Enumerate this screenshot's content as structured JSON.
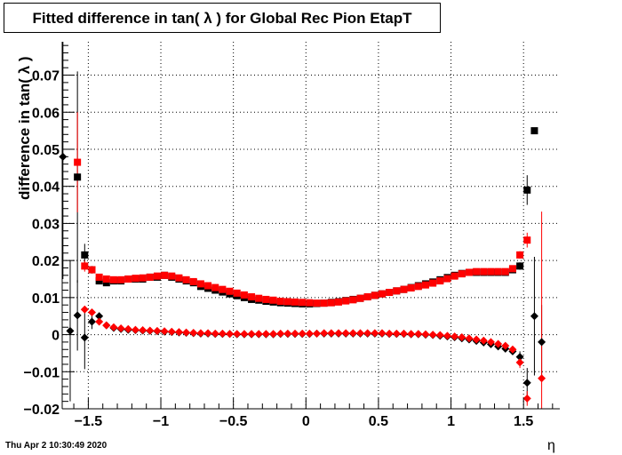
{
  "chart_data": {
    "type": "scatter",
    "title": "Fitted difference in tan( λ ) for Global Rec Pion EtapT",
    "xlabel": "η",
    "ylabel": "difference in tan( λ )",
    "xlim": [
      -1.68,
      1.75
    ],
    "ylim": [
      -0.02,
      0.079
    ],
    "xticks": [
      -1.5,
      -1,
      -0.5,
      0,
      0.5,
      1,
      1.5
    ],
    "xtick_labels": [
      "−1.5",
      "−1",
      "−0.5",
      "0",
      "0.5",
      "1",
      "1.5"
    ],
    "yticks": [
      -0.02,
      -0.01,
      0,
      0.01,
      0.02,
      0.03,
      0.04,
      0.05,
      0.06,
      0.07
    ],
    "ytick_labels": [
      "−0.02",
      "−0.01",
      "0",
      "0.01",
      "0.02",
      "0.03",
      "0.04",
      "0.05",
      "0.06",
      "0.07"
    ],
    "grid": true,
    "series": [
      {
        "marker": "square",
        "color": "#000000",
        "x": [
          -1.575,
          -1.525,
          -1.475,
          -1.425,
          -1.375,
          -1.325,
          -1.275,
          -1.225,
          -1.175,
          -1.125,
          -1.075,
          -1.025,
          -0.975,
          -0.925,
          -0.875,
          -0.825,
          -0.775,
          -0.725,
          -0.675,
          -0.625,
          -0.575,
          -0.525,
          -0.475,
          -0.425,
          -0.375,
          -0.325,
          -0.275,
          -0.225,
          -0.175,
          -0.125,
          -0.075,
          -0.025,
          0.025,
          0.075,
          0.125,
          0.175,
          0.225,
          0.275,
          0.325,
          0.375,
          0.425,
          0.475,
          0.525,
          0.575,
          0.625,
          0.675,
          0.725,
          0.775,
          0.825,
          0.875,
          0.925,
          0.975,
          1.025,
          1.075,
          1.125,
          1.175,
          1.225,
          1.275,
          1.325,
          1.375,
          1.425,
          1.475,
          1.525,
          1.575
        ],
        "y": [
          0.0425,
          0.0215,
          0.0175,
          0.0145,
          0.014,
          0.0145,
          0.0145,
          0.015,
          0.015,
          0.015,
          0.0155,
          0.0155,
          0.016,
          0.0155,
          0.015,
          0.0145,
          0.014,
          0.013,
          0.0125,
          0.012,
          0.0115,
          0.011,
          0.0105,
          0.01,
          0.0095,
          0.0093,
          0.009,
          0.0088,
          0.0086,
          0.0085,
          0.0084,
          0.0083,
          0.0083,
          0.0084,
          0.0085,
          0.0087,
          0.0089,
          0.0092,
          0.0095,
          0.0098,
          0.0102,
          0.0106,
          0.011,
          0.0114,
          0.0118,
          0.0122,
          0.0127,
          0.0132,
          0.0137,
          0.0142,
          0.0148,
          0.0154,
          0.016,
          0.0165,
          0.0168,
          0.0168,
          0.0168,
          0.0168,
          0.0168,
          0.0168,
          0.0175,
          0.0185,
          0.039,
          0.055
        ],
        "err": [
          0.0285,
          0.003,
          0.001,
          0.0008,
          0.0005,
          0.0005,
          0.0004,
          0.0004,
          0.0004,
          0.0004,
          0.0004,
          0.0004,
          0.0004,
          0.0004,
          0.0004,
          0.0003,
          0.0003,
          0.0003,
          0.0003,
          0.0003,
          0.0003,
          0.0003,
          0.0003,
          0.0003,
          0.0003,
          0.0003,
          0.0003,
          0.0003,
          0.0003,
          0.0003,
          0.0003,
          0.0003,
          0.0003,
          0.0003,
          0.0003,
          0.0003,
          0.0003,
          0.0003,
          0.0003,
          0.0003,
          0.0003,
          0.0003,
          0.0003,
          0.0003,
          0.0003,
          0.0003,
          0.0003,
          0.0003,
          0.0003,
          0.0003,
          0.0003,
          0.0003,
          0.0003,
          0.0003,
          0.0003,
          0.0003,
          0.0004,
          0.0004,
          0.0004,
          0.0005,
          0.0006,
          0.001,
          0.004,
          0.0
        ]
      },
      {
        "marker": "square",
        "color": "#ff0000",
        "x": [
          -1.575,
          -1.525,
          -1.475,
          -1.425,
          -1.375,
          -1.325,
          -1.275,
          -1.225,
          -1.175,
          -1.125,
          -1.075,
          -1.025,
          -0.975,
          -0.925,
          -0.875,
          -0.825,
          -0.775,
          -0.725,
          -0.675,
          -0.625,
          -0.575,
          -0.525,
          -0.475,
          -0.425,
          -0.375,
          -0.325,
          -0.275,
          -0.225,
          -0.175,
          -0.125,
          -0.075,
          -0.025,
          0.025,
          0.075,
          0.125,
          0.175,
          0.225,
          0.275,
          0.325,
          0.375,
          0.425,
          0.475,
          0.525,
          0.575,
          0.625,
          0.675,
          0.725,
          0.775,
          0.825,
          0.875,
          0.925,
          0.975,
          1.025,
          1.075,
          1.125,
          1.175,
          1.225,
          1.275,
          1.325,
          1.375,
          1.425,
          1.475,
          1.525
        ],
        "y": [
          0.0465,
          0.0185,
          0.0175,
          0.0155,
          0.015,
          0.0148,
          0.0148,
          0.015,
          0.0152,
          0.0153,
          0.0155,
          0.0158,
          0.016,
          0.0158,
          0.0153,
          0.0148,
          0.0143,
          0.0137,
          0.0132,
          0.0127,
          0.0122,
          0.0117,
          0.0112,
          0.0107,
          0.0102,
          0.0098,
          0.0095,
          0.0093,
          0.009,
          0.0089,
          0.0088,
          0.0087,
          0.0086,
          0.0085,
          0.0085,
          0.0086,
          0.0088,
          0.0091,
          0.0094,
          0.0098,
          0.0102,
          0.0106,
          0.011,
          0.0114,
          0.0118,
          0.0122,
          0.0126,
          0.013,
          0.0134,
          0.0139,
          0.0145,
          0.0151,
          0.0158,
          0.0164,
          0.0168,
          0.017,
          0.017,
          0.017,
          0.017,
          0.017,
          0.0178,
          0.0215,
          0.0255
        ],
        "err": [
          0.0135,
          0.0015,
          0.001,
          0.0008,
          0.0005,
          0.0005,
          0.0004,
          0.0004,
          0.0004,
          0.0004,
          0.0004,
          0.0004,
          0.0004,
          0.0004,
          0.0004,
          0.0003,
          0.0003,
          0.0003,
          0.0003,
          0.0003,
          0.0003,
          0.0003,
          0.0003,
          0.0003,
          0.0003,
          0.0003,
          0.0003,
          0.0003,
          0.0003,
          0.0003,
          0.0003,
          0.0003,
          0.0003,
          0.0003,
          0.0003,
          0.0003,
          0.0003,
          0.0003,
          0.0003,
          0.0003,
          0.0003,
          0.0003,
          0.0003,
          0.0003,
          0.0003,
          0.0003,
          0.0003,
          0.0003,
          0.0003,
          0.0003,
          0.0003,
          0.0003,
          0.0003,
          0.0003,
          0.0003,
          0.0003,
          0.0004,
          0.0004,
          0.0004,
          0.0005,
          0.0006,
          0.001,
          0.002
        ]
      },
      {
        "marker": "diamond",
        "color": "#000000",
        "x": [
          -1.675,
          -1.625,
          -1.575,
          -1.525,
          -1.475,
          -1.425,
          -1.375,
          -1.325,
          -1.275,
          -1.225,
          -1.175,
          -1.125,
          -1.075,
          -1.025,
          -0.975,
          -0.925,
          -0.875,
          -0.825,
          -0.775,
          -0.725,
          -0.675,
          -0.625,
          -0.575,
          -0.525,
          -0.475,
          -0.425,
          -0.375,
          -0.325,
          -0.275,
          -0.225,
          -0.175,
          -0.125,
          -0.075,
          -0.025,
          0.025,
          0.075,
          0.125,
          0.175,
          0.225,
          0.275,
          0.325,
          0.375,
          0.425,
          0.475,
          0.525,
          0.575,
          0.625,
          0.675,
          0.725,
          0.775,
          0.825,
          0.875,
          0.925,
          0.975,
          1.025,
          1.075,
          1.125,
          1.175,
          1.225,
          1.275,
          1.325,
          1.375,
          1.425,
          1.475,
          1.525,
          1.575,
          1.625
        ],
        "y": [
          0.048,
          0.001,
          0.0052,
          -0.0008,
          0.0035,
          0.005,
          0.0025,
          0.0018,
          0.0015,
          0.0013,
          0.0012,
          0.0011,
          0.001,
          0.0009,
          0.0008,
          0.0007,
          0.0006,
          0.0005,
          0.0004,
          0.0003,
          0.0003,
          0.0002,
          0.0002,
          0.0002,
          0.0001,
          0.0001,
          0.0001,
          0.0001,
          0.0001,
          0.0001,
          0.0002,
          0.0002,
          0.0002,
          0.0002,
          0.0002,
          0.0003,
          0.0003,
          0.0003,
          0.0003,
          0.0003,
          0.0003,
          0.0003,
          0.0003,
          0.0003,
          0.0003,
          0.0002,
          0.0002,
          0.0002,
          0.0001,
          0.0001,
          0.0,
          -0.0001,
          -0.0003,
          -0.0005,
          -0.0007,
          -0.001,
          -0.0013,
          -0.0017,
          -0.0021,
          -0.0026,
          -0.0032,
          -0.0038,
          -0.0045,
          -0.006,
          -0.013,
          0.005,
          -0.002
        ],
        "err": [
          0.033,
          0.019,
          0.0095,
          0.0085,
          0.002,
          0.001,
          0.0005,
          0.0004,
          0.0003,
          0.0003,
          0.0003,
          0.0003,
          0.0003,
          0.0003,
          0.0003,
          0.0003,
          0.0003,
          0.0003,
          0.0003,
          0.0003,
          0.0003,
          0.0003,
          0.0003,
          0.0003,
          0.0003,
          0.0003,
          0.0003,
          0.0003,
          0.0003,
          0.0003,
          0.0003,
          0.0003,
          0.0003,
          0.0003,
          0.0003,
          0.0003,
          0.0003,
          0.0003,
          0.0003,
          0.0003,
          0.0003,
          0.0003,
          0.0003,
          0.0003,
          0.0003,
          0.0003,
          0.0003,
          0.0003,
          0.0003,
          0.0003,
          0.0003,
          0.0003,
          0.0003,
          0.0003,
          0.0003,
          0.0003,
          0.0003,
          0.0003,
          0.0003,
          0.0003,
          0.0004,
          0.0005,
          0.0007,
          0.0015,
          0.004,
          0.016,
          0.01
        ]
      },
      {
        "marker": "diamond",
        "color": "#ff0000",
        "x": [
          -1.525,
          -1.475,
          -1.425,
          -1.375,
          -1.325,
          -1.275,
          -1.225,
          -1.175,
          -1.125,
          -1.075,
          -1.025,
          -0.975,
          -0.925,
          -0.875,
          -0.825,
          -0.775,
          -0.725,
          -0.675,
          -0.625,
          -0.575,
          -0.525,
          -0.475,
          -0.425,
          -0.375,
          -0.325,
          -0.275,
          -0.225,
          -0.175,
          -0.125,
          -0.075,
          -0.025,
          0.025,
          0.075,
          0.125,
          0.175,
          0.225,
          0.275,
          0.325,
          0.375,
          0.425,
          0.475,
          0.525,
          0.575,
          0.625,
          0.675,
          0.725,
          0.775,
          0.825,
          0.875,
          0.925,
          0.975,
          1.025,
          1.075,
          1.125,
          1.175,
          1.225,
          1.275,
          1.325,
          1.375,
          1.425,
          1.475,
          1.525,
          1.625
        ],
        "y": [
          0.0068,
          0.006,
          0.0035,
          0.0025,
          0.002,
          0.0017,
          0.0015,
          0.0013,
          0.0012,
          0.0011,
          0.001,
          0.0009,
          0.0008,
          0.0007,
          0.0006,
          0.0005,
          0.0004,
          0.0004,
          0.0003,
          0.0003,
          0.0002,
          0.0002,
          0.0002,
          0.0002,
          0.0002,
          0.0002,
          0.0002,
          0.0003,
          0.0003,
          0.0003,
          0.0003,
          0.0003,
          0.0003,
          0.0004,
          0.0004,
          0.0004,
          0.0004,
          0.0004,
          0.0004,
          0.0004,
          0.0004,
          0.0004,
          0.0003,
          0.0003,
          0.0003,
          0.0002,
          0.0002,
          0.0001,
          0.0,
          -0.0001,
          -0.0003,
          -0.0005,
          -0.0007,
          -0.001,
          -0.0013,
          -0.0016,
          -0.002,
          -0.0025,
          -0.003,
          -0.004,
          -0.0075,
          -0.0172,
          -0.0118
        ],
        "err": [
          0.0008,
          0.0008,
          0.0006,
          0.0004,
          0.0003,
          0.0003,
          0.0003,
          0.0003,
          0.0003,
          0.0003,
          0.0003,
          0.0003,
          0.0003,
          0.0003,
          0.0003,
          0.0003,
          0.0003,
          0.0003,
          0.0003,
          0.0003,
          0.0003,
          0.0003,
          0.0003,
          0.0003,
          0.0003,
          0.0003,
          0.0003,
          0.0003,
          0.0003,
          0.0003,
          0.0003,
          0.0003,
          0.0003,
          0.0003,
          0.0003,
          0.0003,
          0.0003,
          0.0003,
          0.0003,
          0.0003,
          0.0003,
          0.0003,
          0.0003,
          0.0003,
          0.0003,
          0.0003,
          0.0003,
          0.0003,
          0.0003,
          0.0003,
          0.0003,
          0.0003,
          0.0003,
          0.0003,
          0.0003,
          0.0003,
          0.0003,
          0.0004,
          0.0005,
          0.0006,
          0.0015,
          0.002,
          0.045
        ]
      }
    ]
  },
  "footer": {
    "datestamp": "Thu Apr  2 10:30:49 2020"
  }
}
